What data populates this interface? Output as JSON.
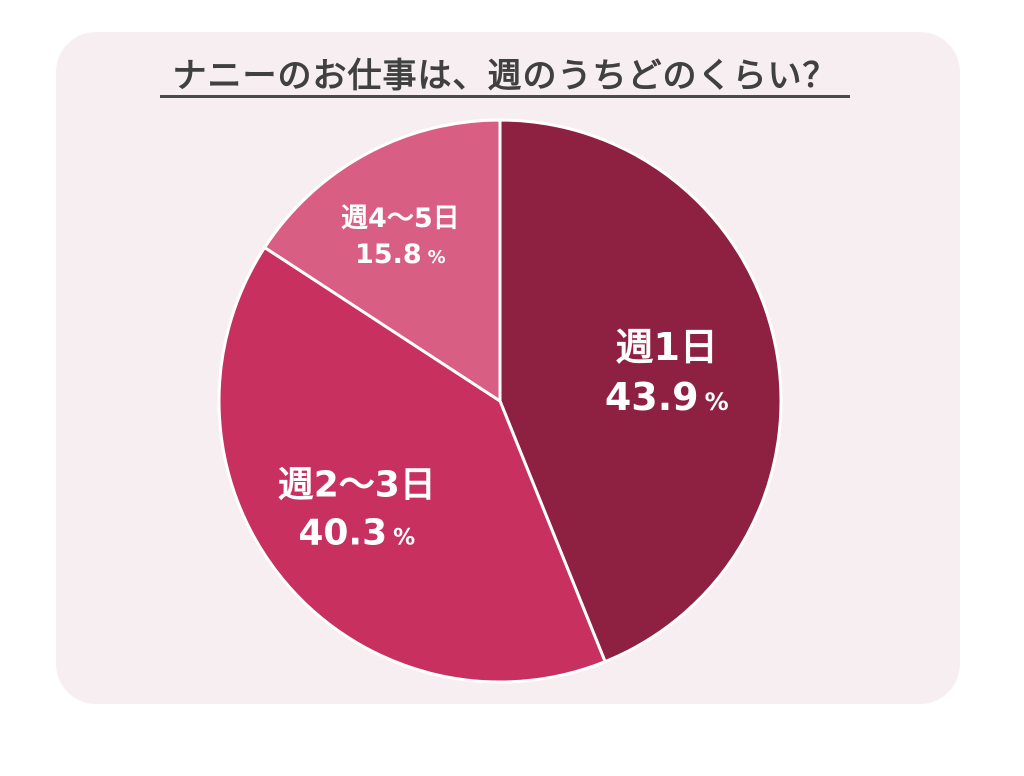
{
  "chart_data": {
    "type": "pie",
    "title": "ナニーのお仕事は、週のうちどのくらい？",
    "slices": [
      {
        "label": "週1日",
        "value": 43.9,
        "value_text": "43.9",
        "unit": "%",
        "color": "#8e2042"
      },
      {
        "label": "週2～3日",
        "value": 40.3,
        "value_text": "40.3",
        "unit": "%",
        "color": "#c7305f"
      },
      {
        "label": "週4～5日",
        "value": 15.8,
        "value_text": "15.8",
        "unit": "%",
        "color": "#d85e84"
      }
    ],
    "start": "12 o'clock",
    "direction": "clockwise"
  }
}
